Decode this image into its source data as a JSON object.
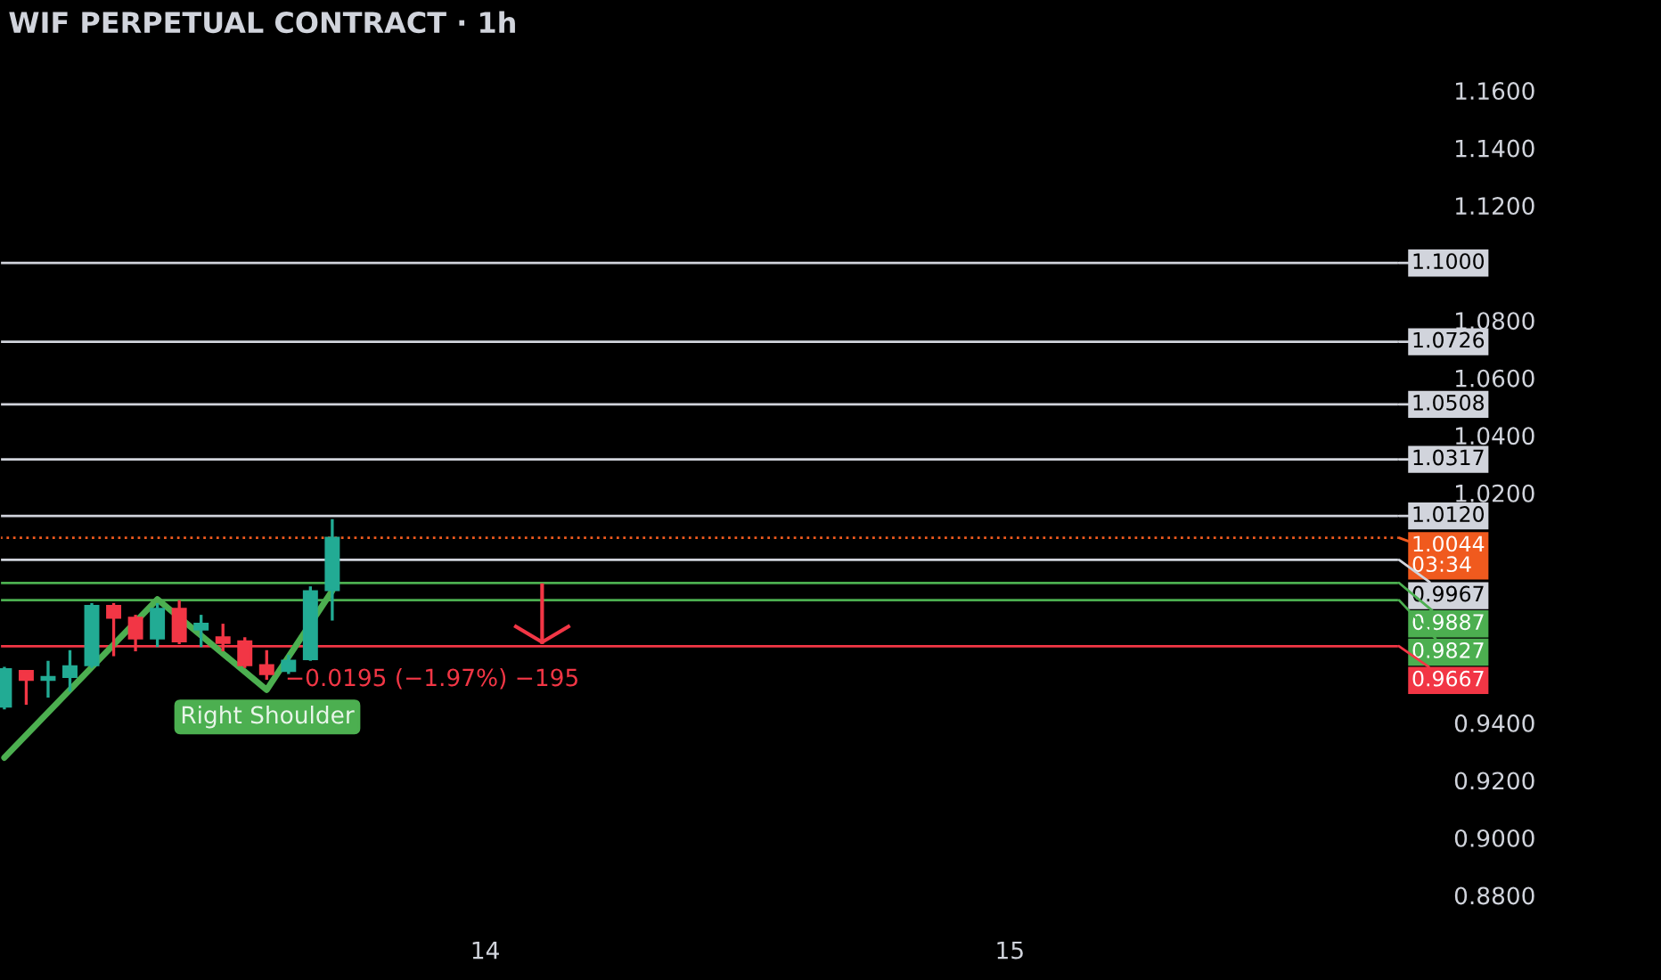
{
  "chart_data": {
    "type": "candlestick",
    "title": "WIF PERPETUAL CONTRACT · 1h",
    "categories": [
      null,
      null,
      null,
      null,
      null,
      null,
      null,
      null,
      null,
      null,
      null,
      null,
      null,
      null,
      null,
      null,
      null,
      null,
      null,
      null,
      null,
      null,
      "14",
      null,
      null,
      null,
      null,
      null,
      null,
      null,
      null,
      null,
      null,
      null,
      null,
      null,
      null,
      null,
      null,
      null,
      null,
      null,
      null,
      null,
      null,
      null,
      "15",
      null,
      null,
      null,
      null,
      null,
      null,
      null,
      null,
      null,
      null,
      null,
      null,
      null,
      null,
      null,
      null,
      null
    ],
    "ohlc": [
      [
        0.9457,
        0.9595,
        0.9447,
        0.9587
      ],
      [
        0.9581,
        0.9581,
        0.9463,
        0.955
      ],
      [
        0.955,
        0.9616,
        0.9488,
        0.956
      ],
      [
        0.956,
        0.9653,
        0.9509,
        0.9597
      ],
      [
        0.9601,
        0.9817,
        0.9591,
        0.9807
      ],
      [
        0.9807,
        0.9817,
        0.9632,
        0.9766
      ],
      [
        0.9766,
        0.9776,
        0.9649,
        0.9694
      ],
      [
        0.9694,
        0.9817,
        0.9664,
        0.9797
      ],
      [
        0.9797,
        0.9827,
        0.9674,
        0.9684
      ],
      [
        0.9725,
        0.9776,
        0.9664,
        0.9745
      ],
      [
        0.9698,
        0.9745,
        0.9649,
        0.9678
      ],
      [
        0.9684,
        0.9698,
        0.9591,
        0.9601
      ],
      [
        0.9601,
        0.9653,
        0.955,
        0.957
      ],
      [
        0.9581,
        0.9637,
        0.957,
        0.9616
      ],
      [
        0.9622,
        0.9875,
        0.9616,
        0.9858
      ],
      [
        0.9862,
        1.0109,
        0.9756,
        1.0044
      ],
      null,
      null,
      null,
      null,
      null,
      null,
      null,
      null,
      null,
      null,
      null,
      null,
      null,
      null,
      null,
      null,
      null,
      null,
      null,
      null,
      null,
      null,
      null,
      null,
      null,
      null,
      null,
      null,
      null,
      null,
      null,
      null,
      null,
      null,
      null,
      null,
      null,
      null,
      null,
      null,
      null,
      null,
      null,
      null,
      null,
      null,
      null,
      null
    ],
    "colors": [
      "#22ab94",
      "#f23645",
      "#22ab94",
      "#22ab94",
      "#22ab94",
      "#f23645",
      "#f23645",
      "#22ab94",
      "#f23645",
      "#22ab94",
      "#f23645",
      "#f23645",
      "#f23645",
      "#22ab94",
      "#22ab94",
      "#22ab94",
      null,
      null,
      null,
      null,
      null,
      null,
      null,
      null,
      null,
      null,
      null,
      null,
      null,
      null,
      null,
      null,
      null,
      null,
      null,
      null,
      null,
      null,
      null,
      null,
      null,
      null,
      null,
      null,
      null,
      null,
      null,
      null,
      null,
      null,
      null,
      null,
      null,
      null,
      null,
      null,
      null,
      null,
      null,
      null,
      null,
      null,
      null,
      null
    ],
    "series": [
      {
        "type": "line",
        "color": "#4caf50",
        "values": [
          0.9279,
          null,
          null,
          null,
          null,
          null,
          null,
          0.983,
          null,
          null,
          null,
          null,
          0.9515,
          null,
          null,
          0.986,
          null,
          null,
          null,
          null,
          null,
          null,
          null,
          null,
          null,
          null,
          null,
          null,
          null,
          null,
          null,
          null,
          null,
          null,
          null,
          null,
          null,
          null,
          null,
          null,
          null,
          null,
          null,
          null,
          null,
          null,
          null,
          null,
          null,
          null,
          null,
          null,
          null,
          null,
          null,
          null,
          null,
          null,
          null,
          null,
          null,
          null,
          null,
          null
        ]
      }
    ],
    "ylim": [
      0.8676,
      1.1915
    ],
    "yticks": [
      {
        "value": 1.16,
        "label": "1.1600"
      },
      {
        "value": 1.14,
        "label": "1.1400"
      },
      {
        "value": 1.12,
        "label": "1.1200"
      },
      {
        "value": 1.08,
        "label": "1.0800"
      },
      {
        "value": 1.06,
        "label": "1.0600"
      },
      {
        "value": 1.04,
        "label": "1.0400"
      },
      {
        "value": 1.02,
        "label": "1.0200"
      },
      {
        "value": 0.94,
        "label": "0.9400"
      },
      {
        "value": 0.92,
        "label": "0.9200"
      },
      {
        "value": 0.9,
        "label": "0.9000"
      },
      {
        "value": 0.88,
        "label": "0.8800"
      }
    ],
    "ref_lines": [
      {
        "axis": "y",
        "value": 1.1,
        "label": "1.1000",
        "color": "#d1d4dc"
      },
      {
        "axis": "y",
        "value": 1.0726,
        "label": "1.0726",
        "color": "#d1d4dc"
      },
      {
        "axis": "y",
        "value": 1.0508,
        "label": "1.0508",
        "color": "#d1d4dc"
      },
      {
        "axis": "y",
        "value": 1.0317,
        "label": "1.0317",
        "color": "#d1d4dc"
      },
      {
        "axis": "y",
        "value": 1.012,
        "label": "1.0120",
        "color": "#d1d4dc"
      },
      {
        "axis": "y",
        "value": 1.0044,
        "label": "1.0044\n03:34",
        "color": "#f05a1e",
        "line_style": "dotted"
      },
      {
        "axis": "y",
        "value": 0.9967,
        "label": "0.9967",
        "color": "#d1d4dc"
      },
      {
        "axis": "y",
        "value": 0.9887,
        "label": "0.9887",
        "color": "#4caf50"
      },
      {
        "axis": "y",
        "value": 0.9827,
        "label": "0.9827",
        "color": "#4caf50"
      },
      {
        "axis": "y",
        "value": 0.9667,
        "label": "0.9667",
        "color": "#f23645"
      }
    ],
    "annotations": [
      "−0.0195 (−1.97%) −195",
      "Right Shoulder"
    ],
    "grid": false,
    "legend": "right"
  }
}
